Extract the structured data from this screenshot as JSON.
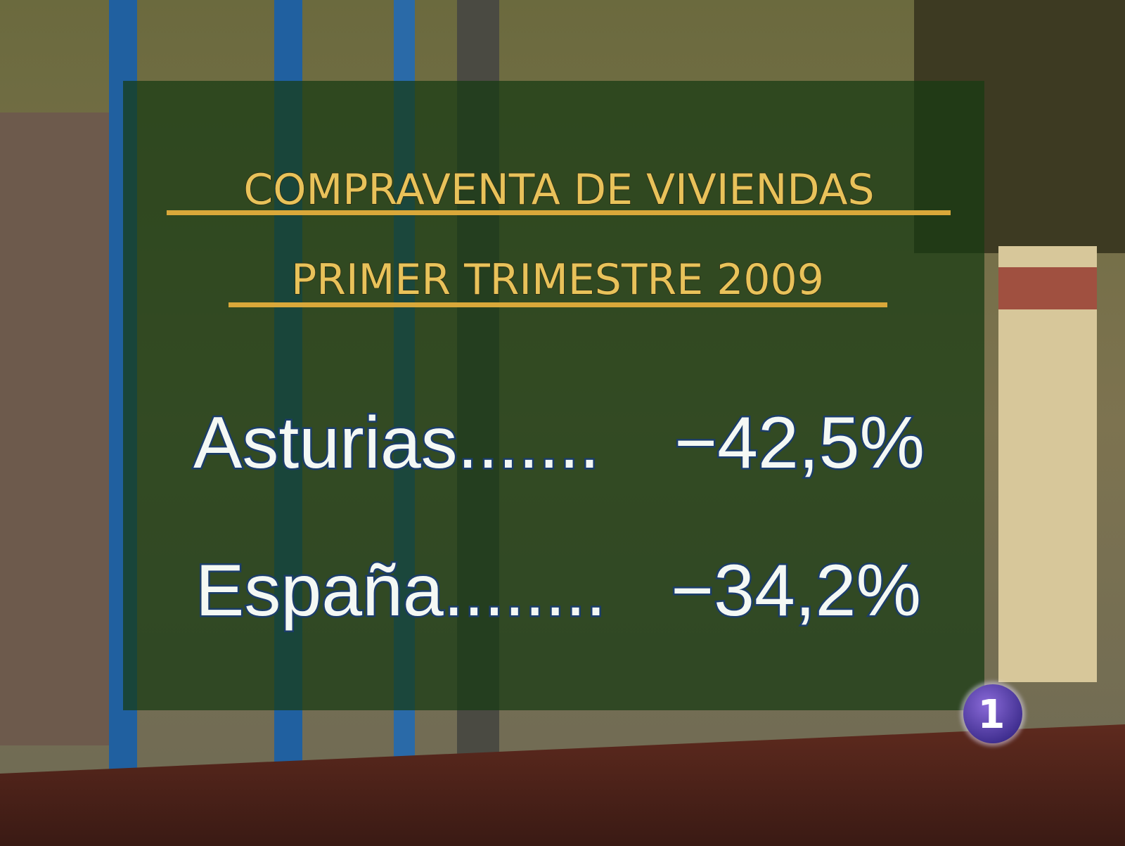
{
  "header": {
    "title": "COMPRAVENTA DE VIVIENDAS",
    "subtitle": "PRIMER TRIMESTRE 2009"
  },
  "rows": [
    {
      "label": "Asturias.......",
      "value": "−42,5%"
    },
    {
      "label": "España........",
      "value": "−34,2%"
    }
  ],
  "logo": "1"
}
